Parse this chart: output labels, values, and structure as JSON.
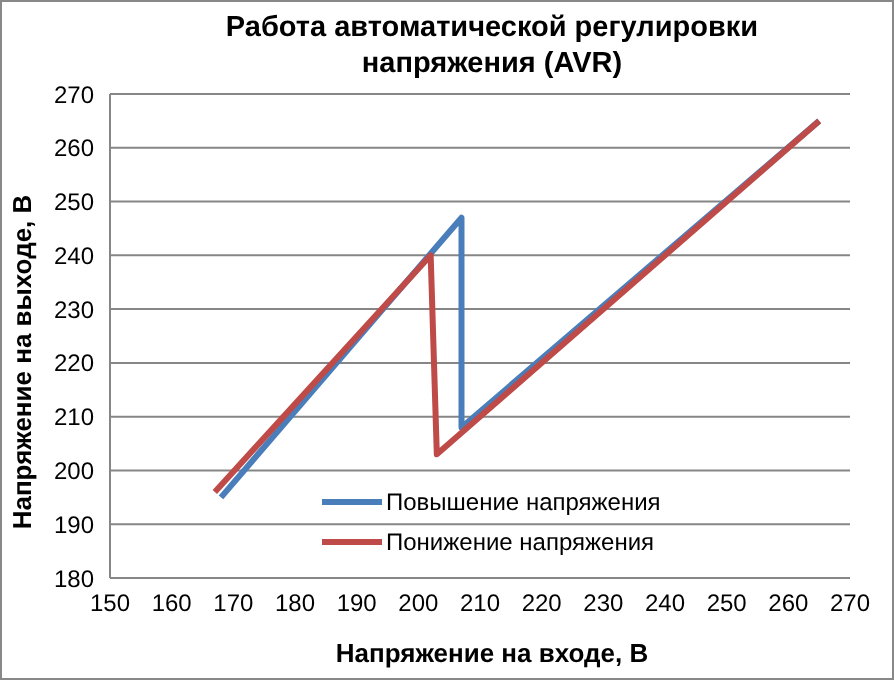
{
  "chart_data": {
    "type": "line",
    "title": "Работа автоматической регулировки напряжения (AVR)",
    "xlabel": "Напряжение на входе, В",
    "ylabel": "Напряжение на выходе, В",
    "series": [
      {
        "name": "Повышение напряжения",
        "color": "#4a7ebb",
        "x": [
          168,
          207,
          207,
          265
        ],
        "values": [
          195,
          247,
          208,
          265
        ]
      },
      {
        "name": "Понижение напряжения",
        "color": "#be4b48",
        "x": [
          167,
          202,
          203,
          265
        ],
        "values": [
          196,
          240,
          203,
          265
        ]
      }
    ],
    "xlim": [
      150,
      270
    ],
    "xticks": [
      150,
      160,
      170,
      180,
      190,
      200,
      210,
      220,
      230,
      240,
      250,
      260,
      270
    ],
    "ylim": [
      180,
      270
    ],
    "yticks": [
      180,
      190,
      200,
      210,
      220,
      230,
      240,
      250,
      260,
      270
    ],
    "grid": "y",
    "legend": "bottom right",
    "marker": "none",
    "line_style": "solid"
  }
}
